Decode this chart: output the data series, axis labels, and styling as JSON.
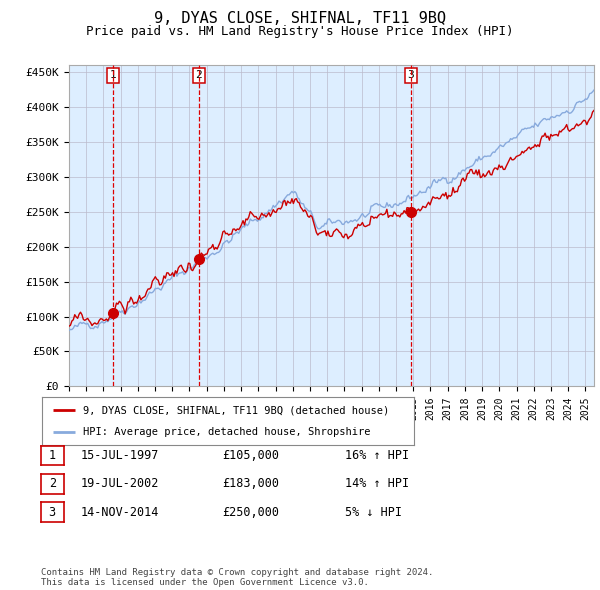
{
  "title": "9, DYAS CLOSE, SHIFNAL, TF11 9BQ",
  "subtitle": "Price paid vs. HM Land Registry's House Price Index (HPI)",
  "ylabel_ticks": [
    "£0",
    "£50K",
    "£100K",
    "£150K",
    "£200K",
    "£250K",
    "£300K",
    "£350K",
    "£400K",
    "£450K"
  ],
  "ytick_values": [
    0,
    50000,
    100000,
    150000,
    200000,
    250000,
    300000,
    350000,
    400000,
    450000
  ],
  "ylim": [
    0,
    460000
  ],
  "xlim_start": 1995.0,
  "xlim_end": 2025.5,
  "sale_dates": [
    1997.54,
    2002.54,
    2014.87
  ],
  "sale_prices": [
    105000,
    183000,
    250000
  ],
  "sale_labels": [
    "1",
    "2",
    "3"
  ],
  "dashed_line_color": "#dd0000",
  "sale_dot_color": "#cc0000",
  "hpi_line_color": "#88aadd",
  "price_line_color": "#cc0000",
  "bg_color": "#ddeeff",
  "plot_bg": "#ffffff",
  "grid_color": "#bbbbcc",
  "legend_label_red": "9, DYAS CLOSE, SHIFNAL, TF11 9BQ (detached house)",
  "legend_label_blue": "HPI: Average price, detached house, Shropshire",
  "table_rows": [
    {
      "num": "1",
      "date": "15-JUL-1997",
      "price": "£105,000",
      "hpi": "16% ↑ HPI"
    },
    {
      "num": "2",
      "date": "19-JUL-2002",
      "price": "£183,000",
      "hpi": "14% ↑ HPI"
    },
    {
      "num": "3",
      "date": "14-NOV-2014",
      "price": "£250,000",
      "hpi": "5% ↓ HPI"
    }
  ],
  "footnote": "Contains HM Land Registry data © Crown copyright and database right 2024.\nThis data is licensed under the Open Government Licence v3.0.",
  "font_family": "DejaVu Sans Mono"
}
